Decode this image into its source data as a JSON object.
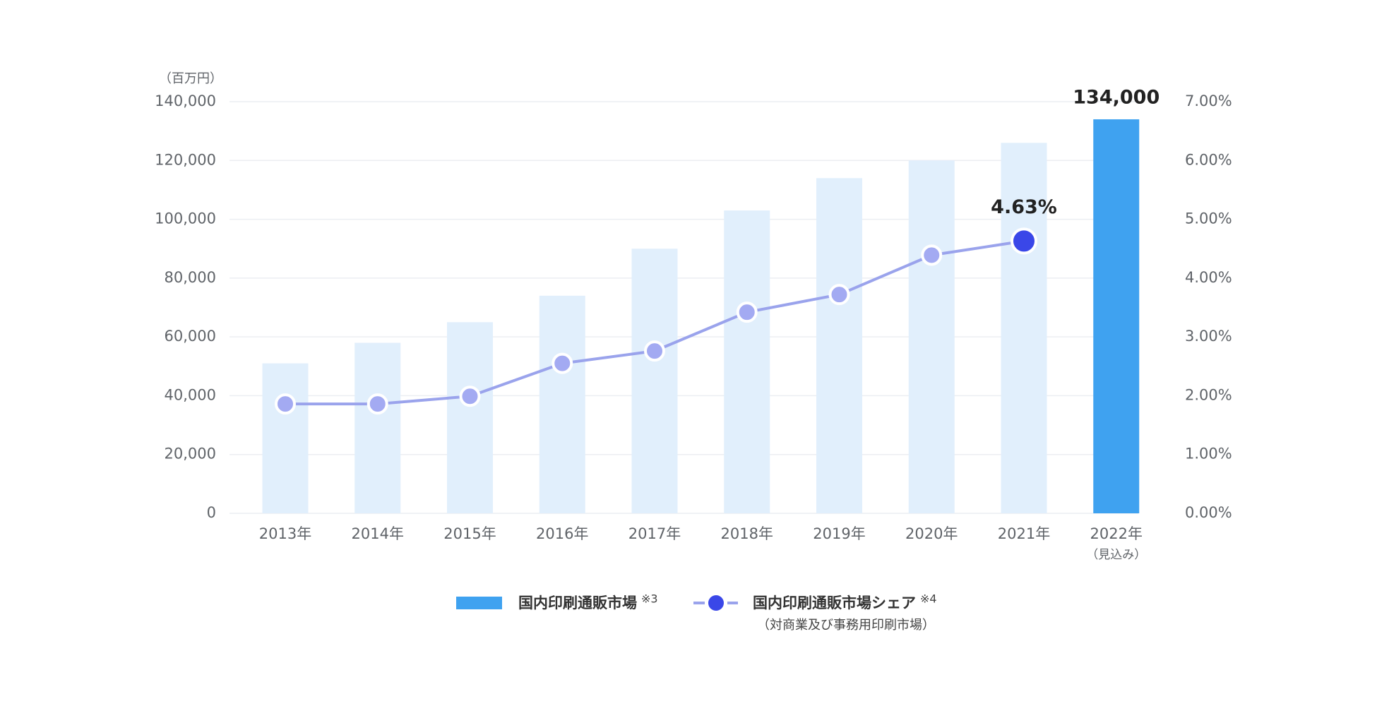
{
  "chart_data": {
    "type": "bar_line",
    "y_unit": "（百万円）",
    "categories": [
      "2013年",
      "2014年",
      "2015年",
      "2016年",
      "2017年",
      "2018年",
      "2019年",
      "2020年",
      "2021年",
      "2022年"
    ],
    "category_sublabels": [
      null,
      null,
      null,
      null,
      null,
      null,
      null,
      null,
      null,
      "（見込み）"
    ],
    "series": [
      {
        "name": "国内印刷通販市場",
        "note": "※3",
        "color": "#3fa2f0",
        "colors": [
          "#e1effc",
          "#e1effc",
          "#e1effc",
          "#e1effc",
          "#e1effc",
          "#e1effc",
          "#e1effc",
          "#e1effc",
          "#e1effc",
          "#3fa2f0"
        ],
        "values": [
          51000,
          58000,
          65000,
          74000,
          90000,
          103000,
          114000,
          120000,
          126000,
          134000
        ],
        "value_labels": [
          null,
          null,
          null,
          null,
          null,
          null,
          null,
          null,
          null,
          "134,000"
        ]
      },
      {
        "name": "国内印刷通販市場シェア",
        "note": "※4",
        "subnote": "（対商業及び事務用印刷市場）",
        "axis": "y2",
        "color": "#9aa3ec",
        "point_color": "#a3aaf2",
        "highlight_color": "#3a47e8",
        "values": [
          1.86,
          1.86,
          1.99,
          2.55,
          2.76,
          3.42,
          3.72,
          4.39,
          4.63,
          null
        ],
        "value_labels": [
          null,
          null,
          null,
          null,
          null,
          null,
          null,
          null,
          "4.63%",
          null
        ]
      }
    ],
    "ylim": [
      0,
      140000
    ],
    "yticks": [
      0,
      {
        "value": 20000,
        "label": "20,000"
      },
      {
        "value": 40000,
        "label": "40,000"
      },
      {
        "value": 60000,
        "label": "60,000"
      },
      {
        "value": 80000,
        "label": "80,000"
      },
      {
        "value": 100000,
        "label": "100,000"
      },
      {
        "value": 120000,
        "label": "120,000"
      },
      {
        "value": 140000,
        "label": "140,000"
      }
    ],
    "y2lim": [
      0,
      7
    ],
    "y2ticks": [
      {
        "value": 0,
        "label": "0.00%"
      },
      {
        "value": 1,
        "label": "1.00%"
      },
      {
        "value": 2,
        "label": "2.00%"
      },
      {
        "value": 3,
        "label": "3.00%"
      },
      {
        "value": 4,
        "label": "4.00%"
      },
      {
        "value": 5,
        "label": "5.00%"
      },
      {
        "value": 6,
        "label": "6.00%"
      },
      {
        "value": 7,
        "label": "7.00%"
      }
    ],
    "grid": true
  }
}
